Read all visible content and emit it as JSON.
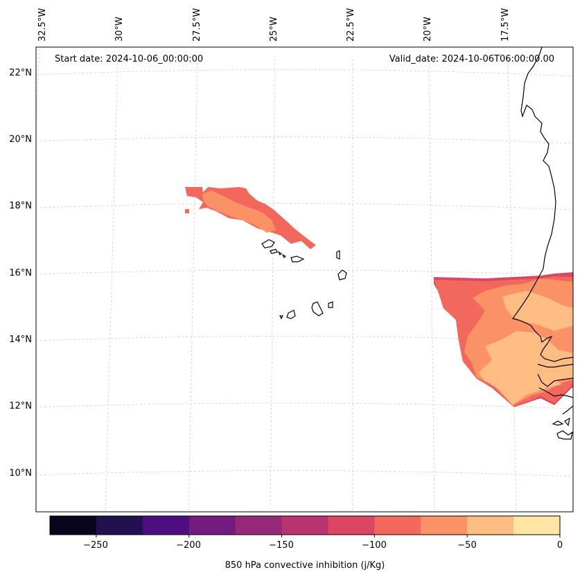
{
  "header": {
    "start_date": "Start date: 2024-10-06_00:00:00",
    "valid_date": "Valid_date: 2024-10-06T06:00:00.00"
  },
  "map": {
    "lon_labels": [
      "32.5°W",
      "30°W",
      "27.5°W",
      "25°W",
      "22.5°W",
      "20°W",
      "17.5°W"
    ],
    "lat_labels": [
      "22°N",
      "20°N",
      "18°N",
      "16°N",
      "14°N",
      "12°N",
      "10°N"
    ],
    "ocean_color": "#ffffff",
    "coastline_color": "#000000",
    "gridline_color": "#cccccc"
  },
  "colorbar": {
    "label": "850 hPa convective inhibition (j/Kg)",
    "tick_labels": [
      "−250",
      "−200",
      "−150",
      "−100",
      "−50",
      "0"
    ],
    "colors": [
      "#07061c",
      "#221150",
      "#4e0d80",
      "#741b80",
      "#952879",
      "#b9346f",
      "#dc4663",
      "#f2685c",
      "#fb9265",
      "#fdbd83",
      "#fee5a3"
    ]
  }
}
